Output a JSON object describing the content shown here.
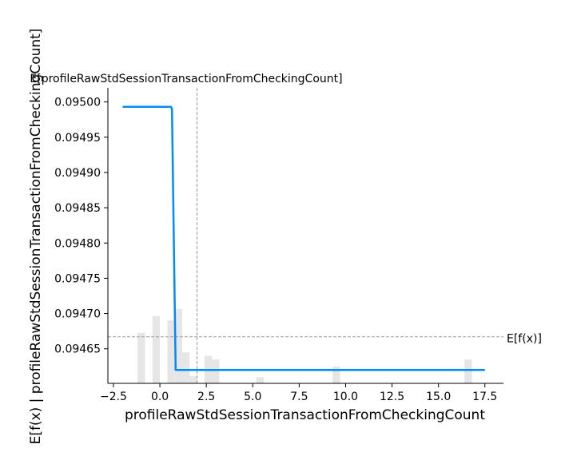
{
  "chart_data": {
    "type": "line",
    "xlabel": "profileRawStdSessionTransactionFromCheckingCount",
    "ylabel": "E[f(x) | profileRawStdSessionTransactionFromCheckingCount]",
    "xlim": [
      -2.8,
      18.5
    ],
    "ylim": [
      0.094601,
      0.09502
    ],
    "x_ticks": [
      -2.5,
      0.0,
      2.5,
      5.0,
      7.5,
      10.0,
      12.5,
      15.0,
      17.5
    ],
    "x_tick_labels": [
      "−2.5",
      "0.0",
      "2.5",
      "5.0",
      "7.5",
      "10.0",
      "12.5",
      "15.0",
      "17.5"
    ],
    "y_ticks": [
      0.09465,
      0.0947,
      0.09475,
      0.0948,
      0.09485,
      0.0949,
      0.09495,
      0.095
    ],
    "y_tick_labels": [
      "0.09465",
      "0.09470",
      "0.09475",
      "0.09480",
      "0.09485",
      "0.09490",
      "0.09495",
      "0.09500"
    ],
    "grid": false,
    "series": [
      {
        "color": "#008bfb",
        "x": [
          -2.0,
          0.6,
          0.65,
          0.85,
          17.5
        ],
        "y": [
          0.094993,
          0.094993,
          0.09499,
          0.09462,
          0.09462
        ]
      }
    ],
    "expected_value": {
      "y": 0.094667,
      "label": "E[f(x)]"
    },
    "expected_feature": {
      "x": 2.0,
      "label": "E[profileRawStdSessionTransactionFromCheckingCount]"
    },
    "histogram": {
      "color": "#e6e6e6",
      "bins": [
        {
          "x0": -1.2,
          "x1": -0.8,
          "height": 0.57
        },
        {
          "x0": -0.4,
          "x1": 0.0,
          "height": 0.76
        },
        {
          "x0": 0.4,
          "x1": 0.8,
          "height": 0.71
        },
        {
          "x0": 0.8,
          "x1": 1.2,
          "height": 0.84
        },
        {
          "x0": 1.2,
          "x1": 1.6,
          "height": 0.35
        },
        {
          "x0": 1.6,
          "x1": 2.0,
          "height": 0.08
        },
        {
          "x0": 2.4,
          "x1": 2.8,
          "height": 0.31
        },
        {
          "x0": 2.8,
          "x1": 3.2,
          "height": 0.27
        },
        {
          "x0": 5.2,
          "x1": 5.6,
          "height": 0.07
        },
        {
          "x0": 9.3,
          "x1": 9.7,
          "height": 0.19
        },
        {
          "x0": 16.4,
          "x1": 16.8,
          "height": 0.27
        }
      ]
    }
  }
}
